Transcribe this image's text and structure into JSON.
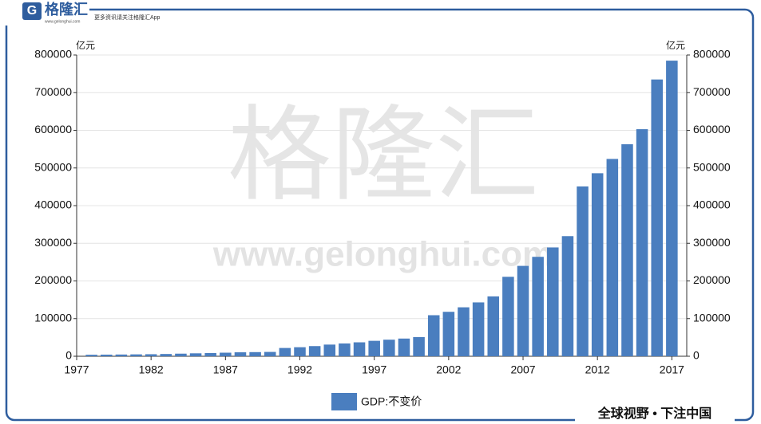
{
  "header": {
    "logo_mark": "G",
    "logo": "格隆汇",
    "logo_url": "www.gelonghui.com",
    "tagline": "更多资讯请关注格隆汇App"
  },
  "watermark": {
    "text": "格隆汇",
    "url": "www.gelonghui.com"
  },
  "footer": "全球视野 • 下注中国",
  "chart_data": {
    "type": "bar",
    "ylabel": "亿元",
    "y2label": "亿元",
    "x": [
      1978,
      1979,
      1980,
      1981,
      1982,
      1983,
      1984,
      1985,
      1986,
      1987,
      1988,
      1989,
      1990,
      1991,
      1992,
      1993,
      1994,
      1995,
      1996,
      1997,
      1998,
      1999,
      2000,
      2001,
      2002,
      2003,
      2004,
      2005,
      2006,
      2007,
      2008,
      2009,
      2010,
      2011,
      2012,
      2013,
      2014,
      2015,
      2016,
      2017
    ],
    "series": [
      {
        "name": "GDP:不变价",
        "color": "#4a7ebf",
        "values": [
          4000,
          4300,
          4600,
          5000,
          5400,
          6000,
          6900,
          7800,
          8500,
          9500,
          10500,
          11000,
          11500,
          22000,
          24000,
          27000,
          31000,
          34000,
          37000,
          41000,
          44000,
          47000,
          51000,
          109000,
          118000,
          130000,
          143000,
          159000,
          211000,
          240000,
          264000,
          289000,
          319000,
          451000,
          486000,
          524000,
          563000,
          603000,
          735000,
          785000
        ]
      }
    ],
    "xlim": [
      1977,
      2018
    ],
    "xticks": [
      1977,
      1982,
      1987,
      1992,
      1997,
      2002,
      2007,
      2012,
      2017
    ],
    "ylim": [
      0,
      800000
    ],
    "yticks": [
      0,
      100000,
      200000,
      300000,
      400000,
      500000,
      600000,
      700000,
      800000
    ],
    "y2lim": [
      0,
      800000
    ],
    "y2ticks": [
      0,
      100000,
      200000,
      300000,
      400000,
      500000,
      600000,
      700000,
      800000
    ],
    "grid": true,
    "legend": "bottom"
  }
}
